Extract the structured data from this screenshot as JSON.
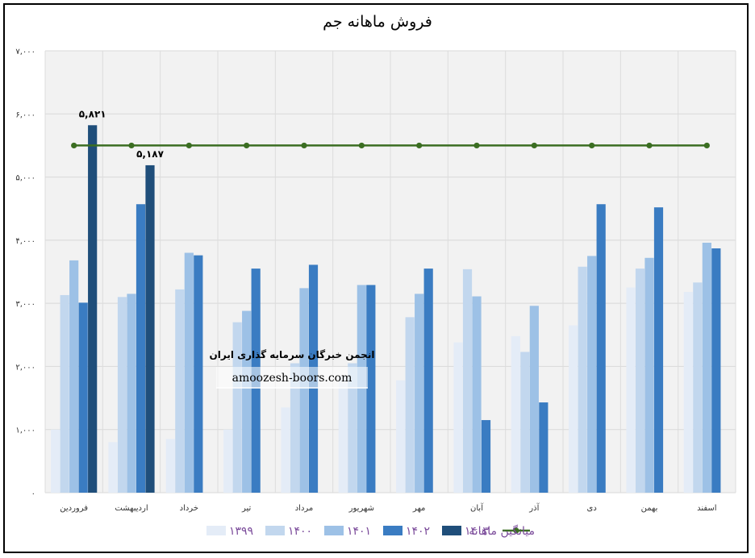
{
  "chart_data": {
    "type": "bar",
    "title": "فروش ماهانه جم",
    "categories": [
      "فروردین",
      "اردیبهشت",
      "خرداد",
      "تیر",
      "مرداد",
      "شهریور",
      "مهر",
      "آبان",
      "آذر",
      "دی",
      "بهمن",
      "اسفند"
    ],
    "y_ticks": [
      "۰",
      "۱,۰۰۰",
      "۲,۰۰۰",
      "۳,۰۰۰",
      "۴,۰۰۰",
      "۵,۰۰۰",
      "۶,۰۰۰",
      "۷,۰۰۰"
    ],
    "ylim": [
      0,
      7000
    ],
    "grid": true,
    "legend_position": "bottom",
    "series": [
      {
        "name": "۱۳۹۹",
        "color": "#e4ecf7",
        "values": [
          1000,
          800,
          850,
          1000,
          1350,
          1850,
          1780,
          2380,
          2480,
          2650,
          3250,
          3180
        ]
      },
      {
        "name": "۱۴۰۰",
        "color": "#c2d7ee",
        "values": [
          3130,
          3100,
          3220,
          2700,
          2050,
          2050,
          2780,
          3540,
          2230,
          3580,
          3550,
          3330
        ]
      },
      {
        "name": "۱۴۰۱",
        "color": "#9dc1e6",
        "values": [
          3680,
          3150,
          3800,
          2880,
          3240,
          3290,
          3150,
          3110,
          2960,
          3750,
          3720,
          3960
        ]
      },
      {
        "name": "۱۴۰۲",
        "color": "#3a7cc2",
        "values": [
          3010,
          4570,
          3760,
          3550,
          3610,
          3290,
          3550,
          1150,
          1430,
          4570,
          4520,
          3870
        ]
      },
      {
        "name": "۱۴۰۳",
        "color": "#1f4e7a",
        "values": [
          5821,
          5187,
          null,
          null,
          null,
          null,
          null,
          null,
          null,
          null,
          null,
          null
        ]
      }
    ],
    "line_series": {
      "name": "میانگین ماهانه",
      "color": "#3b6e22",
      "values": [
        5500,
        5500,
        5500,
        5500,
        5500,
        5500,
        5500,
        5500,
        5500,
        5500,
        5500,
        5500
      ]
    },
    "data_labels": [
      {
        "series": 4,
        "index": 0,
        "text": "۵,۸۲۱"
      },
      {
        "series": 4,
        "index": 1,
        "text": "۵,۱۸۷"
      }
    ]
  },
  "watermark": {
    "line1": "انجمن خبرگان سرمایه گذاری ایران",
    "line2": "amoozesh-boors.com"
  }
}
